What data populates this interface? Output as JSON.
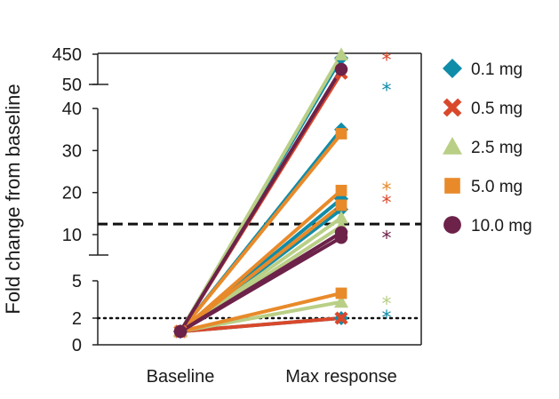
{
  "chart_data": {
    "type": "line",
    "title": "",
    "ylabel": "Fold change from baseline",
    "xlabel": "",
    "categories": [
      "Baseline",
      "Max response"
    ],
    "y_tick_labels": [
      "0",
      "2",
      "5",
      "10",
      "20",
      "30",
      "40",
      "50",
      "450"
    ],
    "y_scale": "broken (0–5, 5–40, 50–450)",
    "reference_lines": [
      {
        "name": "dashed threshold",
        "style": "dashed",
        "y": 12.5
      },
      {
        "name": "dotted threshold",
        "style": "dotted",
        "y": 2
      }
    ],
    "legend": [
      {
        "name": "0.1 mg",
        "marker": "diamond",
        "color": "#0f8ca8"
      },
      {
        "name": "0.5 mg",
        "marker": "x",
        "color": "#d9482b"
      },
      {
        "name": "2.5 mg",
        "marker": "triangle",
        "color": "#b9cf86"
      },
      {
        "name": "5.0 mg",
        "marker": "square",
        "color": "#e88a2a"
      },
      {
        "name": "10.0 mg",
        "marker": "circle",
        "color": "#6c2249"
      }
    ],
    "series": [
      {
        "name": "0.1 mg",
        "color": "#0f8ca8",
        "marker": "diamond",
        "values": [
          [
            1,
            400
          ],
          [
            1,
            35
          ],
          [
            1,
            18.5
          ],
          [
            1,
            16
          ],
          [
            1,
            2
          ]
        ]
      },
      {
        "name": "0.5 mg",
        "color": "#d9482b",
        "marker": "x",
        "values": [
          [
            1,
            200
          ],
          [
            1,
            2
          ]
        ]
      },
      {
        "name": "2.5 mg",
        "color": "#b9cf86",
        "marker": "triangle",
        "values": [
          [
            1,
            445
          ],
          [
            1,
            14
          ],
          [
            1,
            12
          ],
          [
            1,
            3.3
          ]
        ]
      },
      {
        "name": "5.0 mg",
        "color": "#e88a2a",
        "marker": "square",
        "values": [
          [
            1,
            34
          ],
          [
            1,
            20.5
          ],
          [
            1,
            17
          ],
          [
            1,
            4
          ]
        ]
      },
      {
        "name": "10.0 mg",
        "color": "#6c2249",
        "marker": "circle",
        "values": [
          [
            1,
            250
          ],
          [
            1,
            10.5
          ],
          [
            1,
            9.3
          ]
        ]
      }
    ],
    "significance_markers": [
      {
        "symbol": "*",
        "color": "#d9482b",
        "y": 450
      },
      {
        "symbol": "*",
        "color": "#0f8ca8",
        "y": 51
      },
      {
        "symbol": "*",
        "color": "#e88a2a",
        "y": 22
      },
      {
        "symbol": "*",
        "color": "#d9482b",
        "y": 19
      },
      {
        "symbol": "*",
        "color": "#6c2249",
        "y": 10.5
      },
      {
        "symbol": "*",
        "color": "#b9cf86",
        "y": 3.6
      },
      {
        "symbol": "*",
        "color": "#0f8ca8",
        "y": 2.5
      }
    ]
  }
}
